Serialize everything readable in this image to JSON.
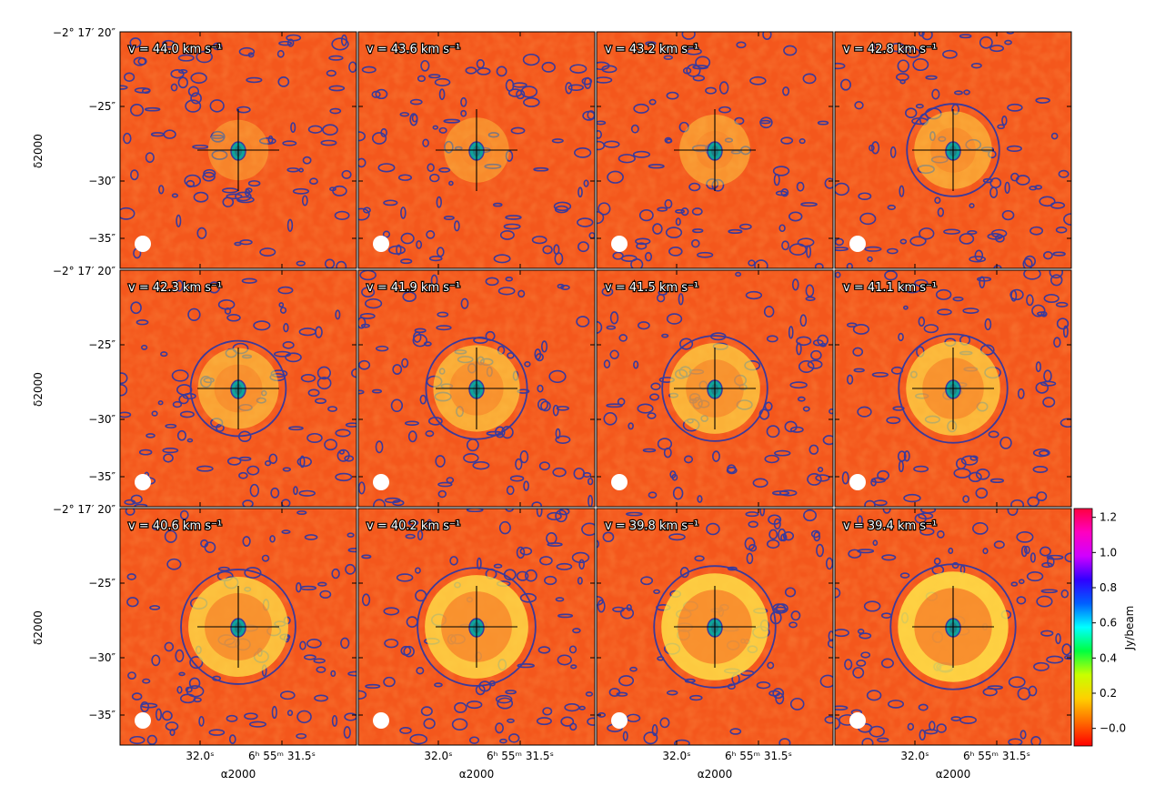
{
  "figure": {
    "panels": [
      {
        "velocity_label": "v = 44.0 km s⁻¹",
        "ring_level": 0.1
      },
      {
        "velocity_label": "v = 43.6 km s⁻¹",
        "ring_level": 0.18
      },
      {
        "velocity_label": "v = 43.2 km s⁻¹",
        "ring_level": 0.28
      },
      {
        "velocity_label": "v = 42.8 km s⁻¹",
        "ring_level": 0.4
      },
      {
        "velocity_label": "v = 42.3 km s⁻¹",
        "ring_level": 0.45
      },
      {
        "velocity_label": "v = 41.9 km s⁻¹",
        "ring_level": 0.55
      },
      {
        "velocity_label": "v = 41.5 km s⁻¹",
        "ring_level": 0.62
      },
      {
        "velocity_label": "v = 41.1 km s⁻¹",
        "ring_level": 0.68
      },
      {
        "velocity_label": "v = 40.6 km s⁻¹",
        "ring_level": 0.78
      },
      {
        "velocity_label": "v = 40.2 km s⁻¹",
        "ring_level": 0.84
      },
      {
        "velocity_label": "v = 39.8 km s⁻¹",
        "ring_level": 0.9
      },
      {
        "velocity_label": "v = 39.4 km s⁻¹",
        "ring_level": 0.96
      }
    ],
    "y_axis": {
      "title": "δ2000",
      "ticks": [
        "−2° 17′ 20″",
        "−25″",
        "−30″",
        "−35″"
      ]
    },
    "x_axis": {
      "title": "α2000",
      "ticks": [
        "32.0ˢ",
        "6ʰ 55ᵐ 31.5ˢ"
      ]
    },
    "colorbar": {
      "label": "Jy/beam",
      "ticks": [
        "−0.0",
        "0.2",
        "0.4",
        "0.6",
        "0.8",
        "1.0",
        "1.2"
      ],
      "range": [
        -0.1,
        1.25
      ],
      "colors": [
        "#ff0000",
        "#ff6a00",
        "#ffd000",
        "#c8ff00",
        "#00ff40",
        "#00ffff",
        "#0060ff",
        "#3000ff",
        "#d000ff",
        "#ff00c0",
        "#ff0040"
      ]
    },
    "colors": {
      "background": "#f4571c",
      "ring": "#ffe84a",
      "contour": "#3b3a9b",
      "core": "#0fa39a",
      "beam": "#ffffff"
    }
  }
}
